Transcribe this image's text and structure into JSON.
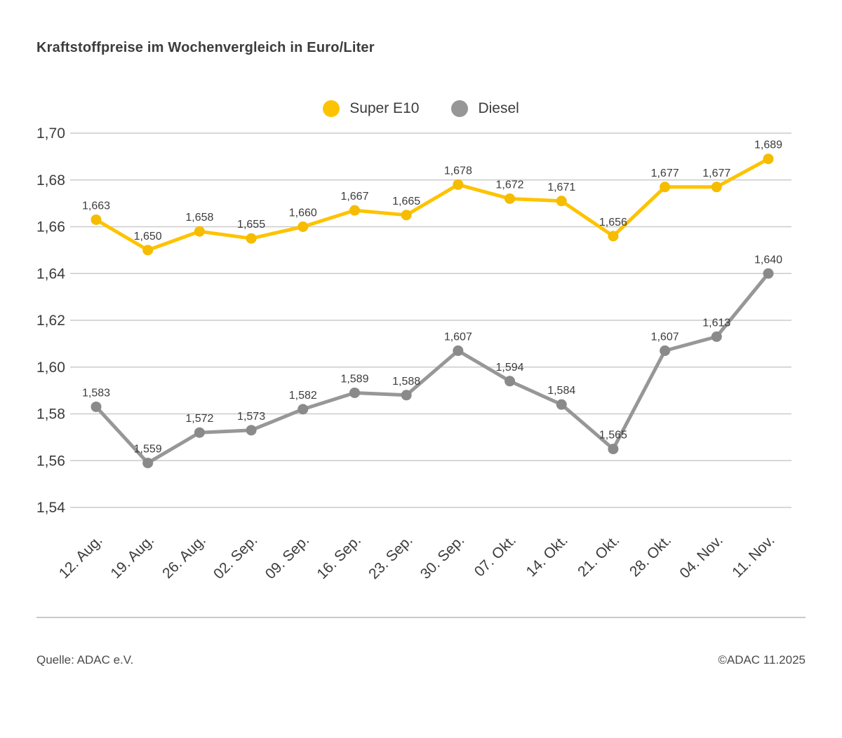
{
  "title": "Kraftstoffpreise im Wochenvergleich in Euro/Liter",
  "footer": {
    "source": "Quelle: ADAC e.V.",
    "copyright": "©ADAC 11.2025"
  },
  "chart_data": {
    "type": "line",
    "title": "Kraftstoffpreise im Wochenvergleich in Euro/Liter",
    "categories": [
      "12. Aug.",
      "19. Aug.",
      "26. Aug.",
      "02. Sep.",
      "09. Sep.",
      "16. Sep.",
      "23. Sep.",
      "30. Sep.",
      "07. Okt.",
      "14. Okt.",
      "21. Okt.",
      "28. Okt.",
      "04. Nov.",
      "11. Nov."
    ],
    "series": [
      {
        "name": "Super E10",
        "color": "#fdc300",
        "point_color": "#f5bc00",
        "values": [
          1.663,
          1.65,
          1.658,
          1.655,
          1.66,
          1.667,
          1.665,
          1.678,
          1.672,
          1.671,
          1.656,
          1.677,
          1.677,
          1.689
        ]
      },
      {
        "name": "Diesel",
        "color": "#979797",
        "point_color": "#8a8a8a",
        "values": [
          1.583,
          1.559,
          1.572,
          1.573,
          1.582,
          1.589,
          1.588,
          1.607,
          1.594,
          1.584,
          1.565,
          1.607,
          1.613,
          1.64
        ]
      }
    ],
    "xlabel": "",
    "ylabel": "Euro/Liter",
    "ylim": [
      1.54,
      1.7
    ],
    "ytick_step": 0.02,
    "yticks": [
      "1,70",
      "1,68",
      "1,66",
      "1,64",
      "1,62",
      "1,60",
      "1,58",
      "1,56",
      "1,54"
    ],
    "grid": true,
    "grid_color": "#cbcbcb",
    "legend_position": "top-center",
    "decimal_separator": ","
  }
}
